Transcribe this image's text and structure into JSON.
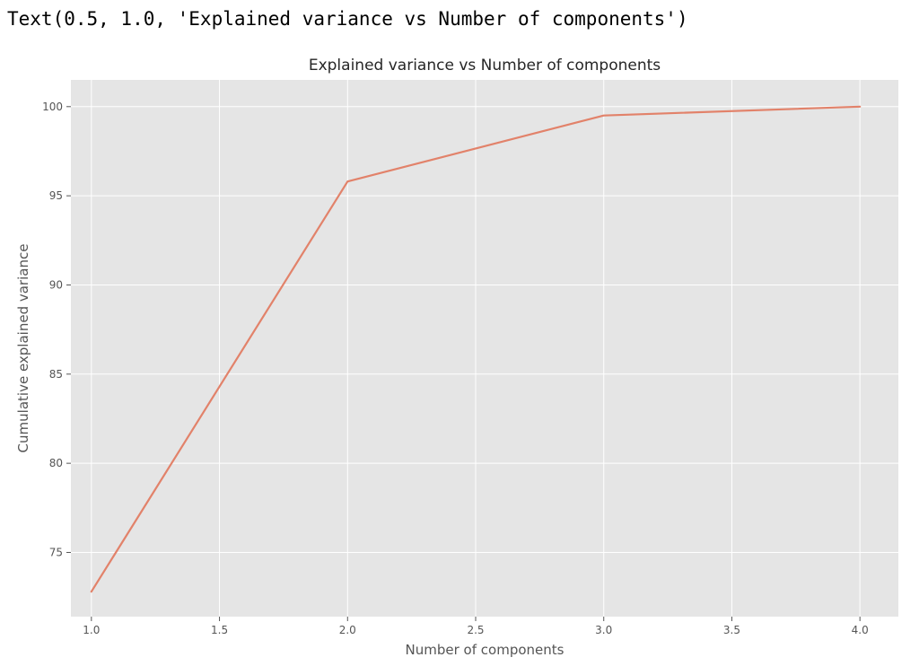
{
  "output": {
    "text": "Text(0.5, 1.0, 'Explained variance vs Number of components')"
  },
  "colors": {
    "plot_background": "#e5e5e5",
    "grid": "#ffffff",
    "series_line": "#e2826a",
    "text": "#555555"
  },
  "chart_data": {
    "type": "line",
    "title": "Explained variance vs Number of components",
    "xlabel": "Number of components",
    "ylabel": "Cumulative explained variance",
    "xlim": [
      0.92,
      4.15
    ],
    "ylim": [
      71.4,
      101.5
    ],
    "grid": true,
    "x_ticks": [
      "1.0",
      "1.5",
      "2.0",
      "2.5",
      "3.0",
      "3.5",
      "4.0"
    ],
    "y_ticks": [
      "75",
      "80",
      "85",
      "90",
      "95",
      "100"
    ],
    "series": [
      {
        "x": [
          1,
          2,
          3,
          4
        ],
        "y": [
          72.8,
          95.8,
          99.5,
          100.0
        ]
      }
    ]
  }
}
